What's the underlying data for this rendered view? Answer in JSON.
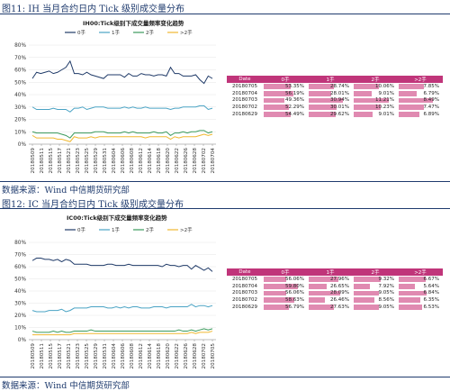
{
  "figures": [
    {
      "caption": "图11:  IH 当月合约日内 Tick 级别成交量分布",
      "chart_title": "IH00:Tick级别下成交量频率变化趋势",
      "source": "数据来源：Wind    中信期货研究部",
      "table": {
        "headers": [
          "Date",
          "0手",
          "1手",
          "2手",
          ">2手"
        ],
        "rows": [
          [
            "20180705",
            "53.35%",
            "28.74%",
            "10.06%",
            "7.85%"
          ],
          [
            "20180704",
            "56.19%",
            "28.01%",
            "9.01%",
            "6.79%"
          ],
          [
            "20180703",
            "49.36%",
            "30.94%",
            "11.21%",
            "8.49%"
          ],
          [
            "20180702",
            "52.29%",
            "30.01%",
            "10.23%",
            "7.47%"
          ],
          [
            "20180629",
            "54.49%",
            "29.62%",
            "9.01%",
            "6.89%"
          ]
        ],
        "fills": [
          [
            0.6,
            0.55,
            0.55,
            0.55
          ],
          [
            0.66,
            0.5,
            0.4,
            0.4
          ],
          [
            0.45,
            0.75,
            0.78,
            0.75
          ],
          [
            0.55,
            0.62,
            0.6,
            0.55
          ],
          [
            0.6,
            0.6,
            0.42,
            0.45
          ]
        ]
      }
    },
    {
      "caption": "图12:  IC 当月合约日内 Tick 级别成交量分布",
      "chart_title": "IC00:Tick级别下成交量频率变化趋势",
      "source": "数据来源：Wind    中信期货研究部",
      "table": {
        "headers": [
          "Date",
          "0手",
          "1手",
          "2手",
          ">2手"
        ],
        "rows": [
          [
            "20180705",
            "56.06%",
            "27.96%",
            "9.32%",
            "6.67%"
          ],
          [
            "20180704",
            "59.80%",
            "26.65%",
            "7.92%",
            "5.64%"
          ],
          [
            "20180703",
            "56.06%",
            "28.09%",
            "9.05%",
            "6.84%"
          ],
          [
            "20180702",
            "58.63%",
            "26.46%",
            "8.56%",
            "6.35%"
          ],
          [
            "20180629",
            "56.79%",
            "27.63%",
            "9.05%",
            "6.53%"
          ]
        ],
        "fills": [
          [
            0.5,
            0.65,
            0.6,
            0.6
          ],
          [
            0.75,
            0.4,
            0.35,
            0.35
          ],
          [
            0.5,
            0.7,
            0.55,
            0.62
          ],
          [
            0.68,
            0.35,
            0.45,
            0.48
          ],
          [
            0.55,
            0.55,
            0.55,
            0.52
          ]
        ]
      }
    }
  ],
  "chart_data": [
    {
      "type": "line",
      "title": "IH00:Tick级别下成交量频率变化趋势",
      "ylim": [
        0,
        80
      ],
      "yticks": [
        "0%",
        "10%",
        "20%",
        "30%",
        "40%",
        "50%",
        "60%",
        "70%",
        "80%"
      ],
      "xtick_labels": [
        "20180509",
        "20180511",
        "20180515",
        "20180517",
        "20180521",
        "20180523",
        "20180525",
        "20180529",
        "20180531",
        "20180604",
        "20180606",
        "20180608",
        "20180612",
        "20180614",
        "20180618",
        "20180620",
        "20180622",
        "20180626",
        "20180628",
        "20180702",
        "20180704"
      ],
      "legend_position": "top",
      "series": [
        {
          "name": "0手",
          "color": "#1f3a68",
          "values": [
            53,
            58,
            57,
            58,
            59,
            57,
            58,
            60,
            62,
            67,
            57,
            57,
            56,
            58,
            56,
            55,
            54,
            53,
            56,
            56,
            56,
            56,
            54,
            57,
            55,
            55,
            57,
            56,
            56,
            55,
            56,
            56,
            55,
            62,
            57,
            57,
            55,
            55,
            55,
            56,
            52,
            49,
            55,
            53
          ]
        },
        {
          "name": "1手",
          "color": "#4aa3c4",
          "values": [
            30,
            28,
            28,
            28,
            28,
            29,
            28,
            28,
            28,
            26,
            29,
            29,
            30,
            28,
            29,
            30,
            30,
            30,
            29,
            29,
            29,
            29,
            30,
            29,
            30,
            29,
            29,
            30,
            29,
            29,
            29,
            29,
            29,
            28,
            29,
            29,
            30,
            30,
            30,
            30,
            31,
            31,
            28,
            29
          ]
        },
        {
          "name": "2手",
          "color": "#3a9a5c",
          "values": [
            10,
            9,
            9,
            9,
            9,
            9,
            9,
            8,
            7,
            5,
            9,
            9,
            9,
            9,
            9,
            10,
            10,
            10,
            9,
            9,
            9,
            9,
            10,
            9,
            10,
            9,
            9,
            9,
            9,
            10,
            9,
            9,
            10,
            7,
            9,
            9,
            10,
            9,
            10,
            10,
            11,
            11,
            9,
            10
          ]
        },
        {
          "name": ">2手",
          "color": "#f0b830",
          "values": [
            7,
            5,
            5,
            5,
            5,
            5,
            4,
            4,
            3,
            2,
            6,
            5,
            5,
            5,
            6,
            5,
            6,
            6,
            6,
            6,
            6,
            6,
            6,
            6,
            6,
            6,
            6,
            5,
            6,
            6,
            6,
            6,
            6,
            4,
            6,
            5,
            6,
            6,
            6,
            6,
            7,
            8,
            7,
            8
          ]
        }
      ]
    },
    {
      "type": "line",
      "title": "IC00:Tick级别下成交量频率变化趋势",
      "ylim": [
        0,
        80
      ],
      "yticks": [
        "0%",
        "10%",
        "20%",
        "30%",
        "40%",
        "50%",
        "60%",
        "70%",
        "80%"
      ],
      "xtick_labels": [
        "20180509",
        "20180511",
        "20180515",
        "20180517",
        "20180521",
        "20180523",
        "20180525",
        "20180529",
        "20180531",
        "20180604",
        "20180606",
        "20180608",
        "20180612",
        "20180614",
        "20180618",
        "20180620",
        "20180622",
        "20180626",
        "20180628",
        "20180702",
        "20180705"
      ],
      "legend_position": "top",
      "series": [
        {
          "name": "0手",
          "color": "#1f3a68",
          "values": [
            65,
            67,
            67,
            66,
            66,
            65,
            66,
            64,
            66,
            65,
            62,
            62,
            62,
            62,
            61,
            61,
            61,
            61,
            62,
            62,
            61,
            61,
            61,
            62,
            61,
            61,
            61,
            61,
            61,
            61,
            61,
            60,
            62,
            61,
            61,
            60,
            61,
            61,
            58,
            61,
            59,
            57,
            59,
            56
          ]
        },
        {
          "name": "1手",
          "color": "#4aa3c4",
          "values": [
            24,
            23,
            23,
            23,
            24,
            24,
            24,
            25,
            23,
            24,
            26,
            26,
            26,
            26,
            27,
            27,
            27,
            27,
            26,
            26,
            27,
            26,
            27,
            26,
            27,
            27,
            26,
            26,
            26,
            27,
            27,
            27,
            26,
            27,
            27,
            27,
            27,
            27,
            29,
            27,
            28,
            28,
            27,
            28
          ]
        },
        {
          "name": "2手",
          "color": "#3a9a5c",
          "values": [
            7,
            6,
            6,
            6,
            6,
            7,
            6,
            7,
            6,
            6,
            7,
            7,
            7,
            7,
            8,
            7,
            7,
            7,
            7,
            7,
            7,
            7,
            7,
            7,
            7,
            7,
            7,
            7,
            7,
            7,
            7,
            7,
            7,
            7,
            7,
            8,
            7,
            7,
            8,
            7,
            8,
            9,
            8,
            9
          ]
        },
        {
          "name": ">2手",
          "color": "#f0b830",
          "values": [
            4,
            4,
            4,
            4,
            4,
            4,
            4,
            4,
            4,
            4,
            5,
            5,
            5,
            5,
            5,
            5,
            5,
            5,
            5,
            5,
            5,
            5,
            5,
            5,
            5,
            5,
            5,
            5,
            5,
            5,
            5,
            5,
            5,
            5,
            5,
            5,
            5,
            5,
            6,
            5,
            6,
            6,
            6,
            7
          ]
        }
      ]
    }
  ]
}
